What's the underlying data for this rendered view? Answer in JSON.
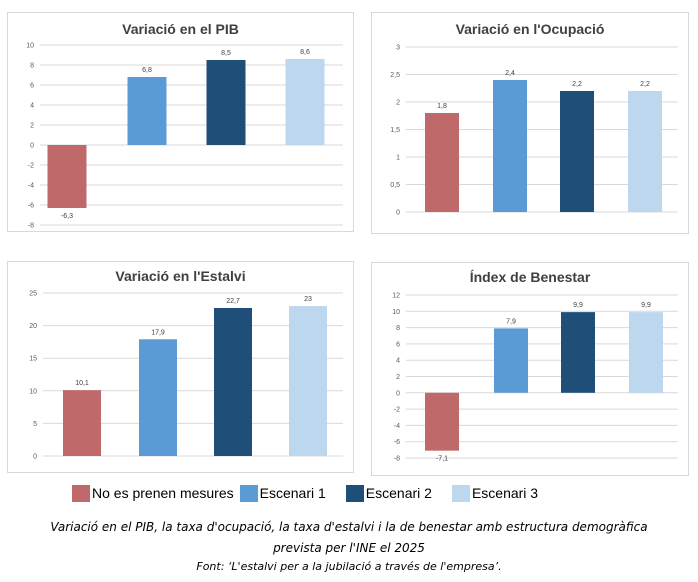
{
  "colors": {
    "No es prenen mesures": "#c0696b",
    "Escenari 1": "#5b9bd5",
    "Escenari 2": "#1f4e79",
    "Escenari 3": "#bdd7ee"
  },
  "legend": [
    "No es prenen mesures",
    "Escenari 1",
    "Escenari 2",
    "Escenari 3"
  ],
  "chart_data": [
    {
      "type": "bar",
      "title": "Variació en el PIB",
      "categories": [
        "No es prenen mesures",
        "Escenari 1",
        "Escenari 2",
        "Escenari 3"
      ],
      "values": [
        -6.3,
        6.8,
        8.5,
        8.6
      ],
      "value_labels": [
        "-6,3",
        "6,8",
        "8,5",
        "8,6"
      ],
      "yticks": [
        "10",
        "8",
        "6",
        "4",
        "2",
        "0",
        "-2",
        "-4",
        "-6",
        "-8"
      ],
      "ytick_values": [
        10,
        8,
        6,
        4,
        2,
        0,
        -2,
        -4,
        -6,
        -8
      ],
      "ylim": [
        -8,
        10
      ],
      "grid": true
    },
    {
      "type": "bar",
      "title": "Variació en l'Ocupació",
      "categories": [
        "No es prenen mesures",
        "Escenari 1",
        "Escenari 2",
        "Escenari 3"
      ],
      "values": [
        1.8,
        2.4,
        2.2,
        2.2
      ],
      "value_labels": [
        "1,8",
        "2,4",
        "2,2",
        "2,2"
      ],
      "yticks": [
        "3",
        "2,5",
        "2",
        "1,5",
        "1",
        "0,5",
        "0"
      ],
      "ytick_values": [
        3,
        2.5,
        2,
        1.5,
        1,
        0.5,
        0
      ],
      "ylim": [
        0,
        3
      ],
      "grid": true
    },
    {
      "type": "bar",
      "title": "Variació en l'Estalvi",
      "categories": [
        "No es prenen mesures",
        "Escenari 1",
        "Escenari 2",
        "Escenari 3"
      ],
      "values": [
        10.1,
        17.9,
        22.7,
        23
      ],
      "value_labels": [
        "10,1",
        "17,9",
        "22,7",
        "23"
      ],
      "yticks": [
        "25",
        "20",
        "15",
        "10",
        "5",
        "0"
      ],
      "ytick_values": [
        25,
        20,
        15,
        10,
        5,
        0
      ],
      "ylim": [
        0,
        25
      ],
      "grid": true
    },
    {
      "type": "bar",
      "title": "Índex de Benestar",
      "categories": [
        "No es prenen mesures",
        "Escenari 1",
        "Escenari 2",
        "Escenari 3"
      ],
      "values": [
        -7.1,
        7.9,
        9.9,
        9.9
      ],
      "value_labels": [
        "-7,1",
        "7,9",
        "9,9",
        "9,9"
      ],
      "yticks": [
        "12",
        "10",
        "8",
        "6",
        "4",
        "2",
        "0",
        "-2",
        "-4",
        "-6",
        "-8"
      ],
      "ytick_values": [
        12,
        10,
        8,
        6,
        4,
        2,
        0,
        -2,
        -4,
        -6,
        -8
      ],
      "ylim": [
        -8,
        12
      ],
      "grid": true
    }
  ],
  "caption": {
    "line1": "Variació en el PIB, la taxa d'ocupació, la taxa d'estalvi i la de benestar amb estructura demogràfica",
    "line2": "prevista per l'INE el 2025",
    "source": "Font: ‘L'estalvi per a la jubilació a través de l'empresa’."
  }
}
